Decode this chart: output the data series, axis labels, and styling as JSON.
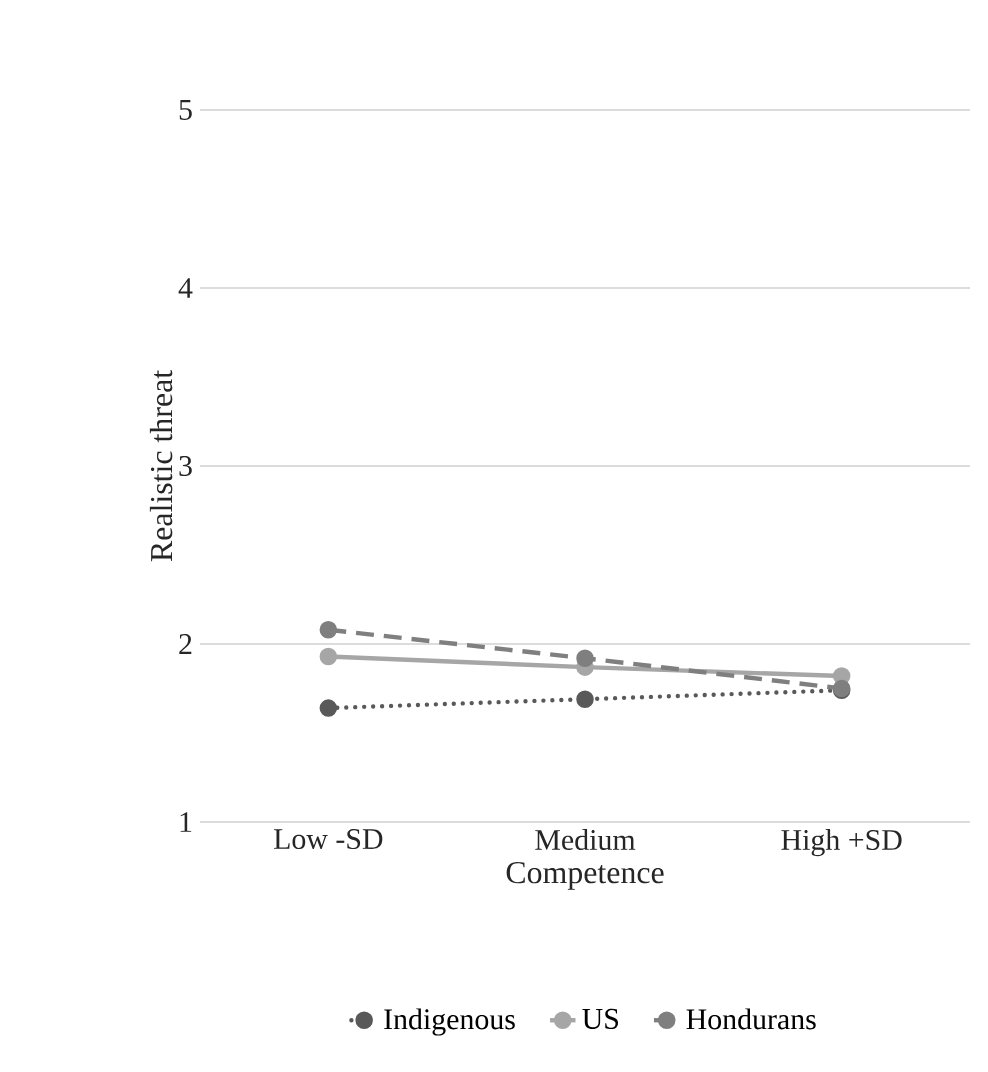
{
  "chart_data": {
    "type": "line",
    "xlabel": "Competence",
    "ylabel": "Realistic threat",
    "categories": [
      "Low -SD",
      "Medium",
      "High +SD"
    ],
    "series": [
      {
        "name": "Indigenous",
        "color": "#595959",
        "line_style": "dotted",
        "values": [
          1.64,
          1.69,
          1.74
        ]
      },
      {
        "name": "US",
        "color": "#a6a6a6",
        "line_style": "solid",
        "values": [
          1.93,
          1.87,
          1.82
        ]
      },
      {
        "name": "Hondurans",
        "color": "#7f7f7f",
        "line_style": "dashed",
        "values": [
          2.08,
          1.92,
          1.75
        ]
      }
    ],
    "ylim": [
      1,
      5
    ],
    "yticks": [
      1,
      2,
      3,
      4,
      5
    ],
    "grid": "y",
    "legend": "bottom",
    "marker": "circle"
  }
}
